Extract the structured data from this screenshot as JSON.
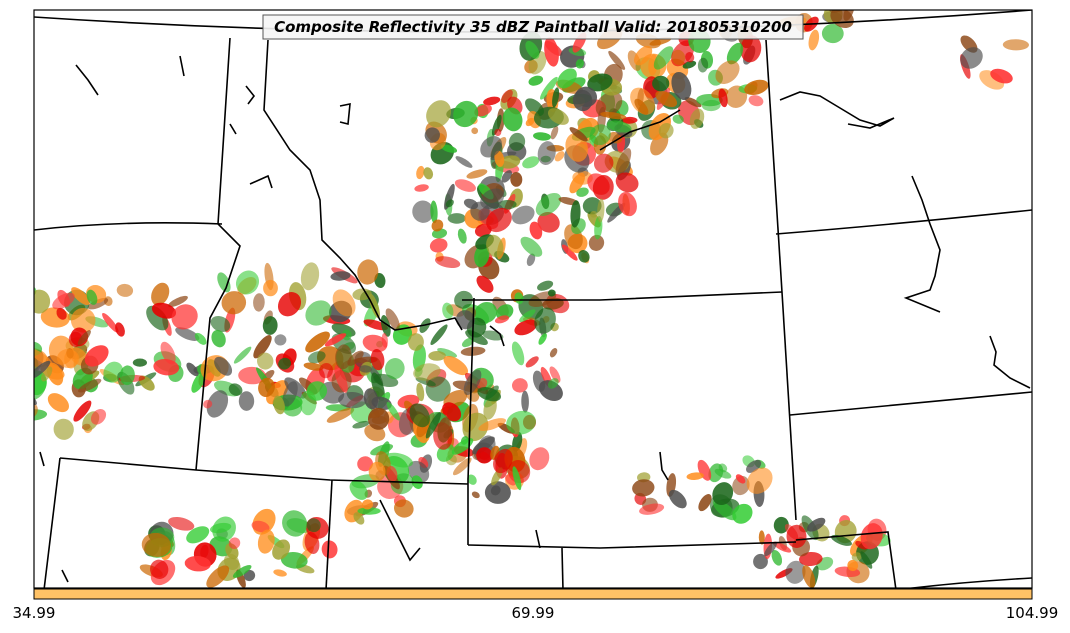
{
  "title": "Composite Reflectivity 35 dBZ Paintball Valid: 201805310200",
  "colorbar": {
    "fill_color": "#ffc266",
    "tick_labels": [
      "34.99",
      "69.99",
      "104.99"
    ]
  },
  "colors": {
    "paintball_palette": [
      "#ff3333",
      "#ff8c1a",
      "#2eb82e",
      "#8b4513",
      "#4d4d4d",
      "#a0a030",
      "#33cc33",
      "#e60000",
      "#cc6600",
      "#1a661a"
    ],
    "boundary": "#000000",
    "background": "#ffffff"
  }
}
